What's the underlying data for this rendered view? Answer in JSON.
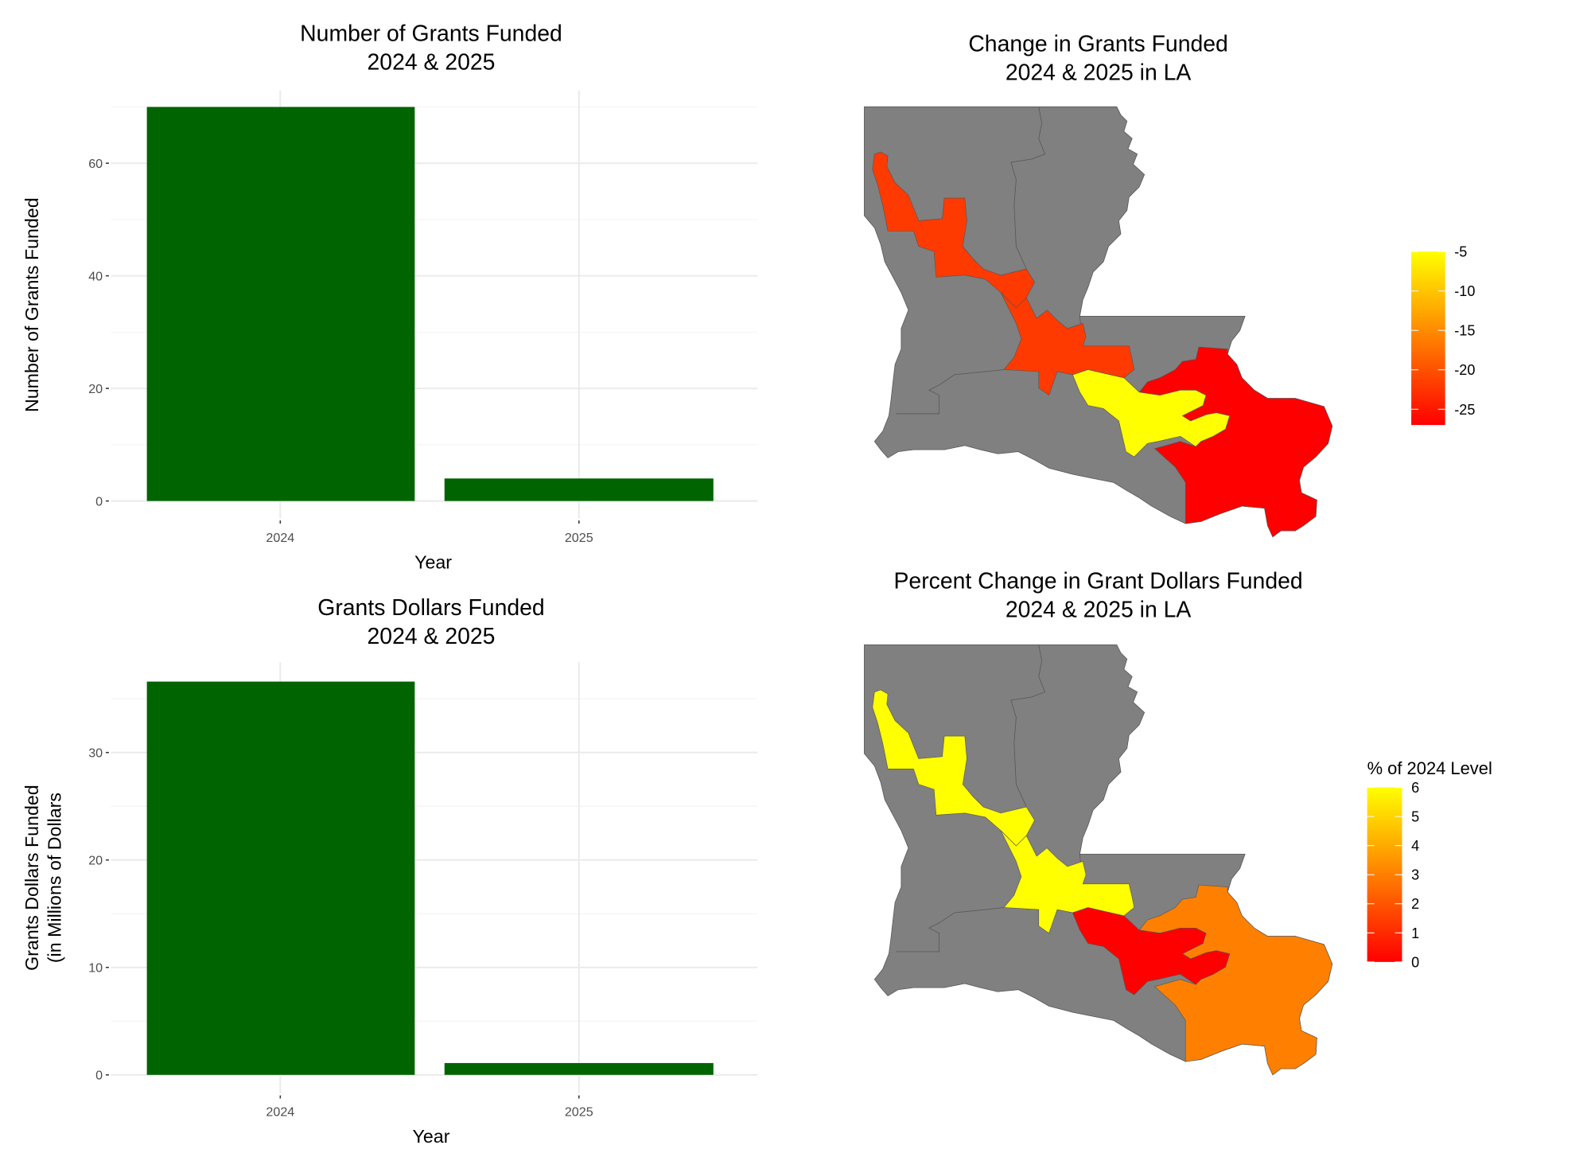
{
  "chart_data": [
    {
      "type": "bar",
      "title_line1": "Number of Grants Funded",
      "title_line2": "2024 & 2025",
      "xlabel": "Year",
      "ylabel": "Number of Grants Funded",
      "ylabel_line2": "",
      "categories": [
        "2024",
        "2025"
      ],
      "values": [
        70,
        4
      ],
      "yticks": [
        0,
        20,
        40,
        60
      ],
      "ylim": [
        0,
        73
      ],
      "bar_color": "#006400"
    },
    {
      "type": "bar",
      "title_line1": "Grants Dollars Funded",
      "title_line2": "2024 & 2025",
      "xlabel": "Year",
      "ylabel": "Grants Dollars Funded",
      "ylabel_line2": "(in Millions of Dollars",
      "categories": [
        "2024",
        "2025"
      ],
      "values": [
        36.6,
        1.1
      ],
      "yticks": [
        0,
        10,
        20,
        30
      ],
      "ylim": [
        0,
        38.5
      ],
      "bar_color": "#006400"
    },
    {
      "type": "heatmap",
      "subtype": "choropleth",
      "title_line1": "Change in Grants Funded",
      "title_line2": "2024 & 2025 in LA",
      "legend_title": "",
      "legend_ticks": [
        "-5",
        "-10",
        "-15",
        "-20",
        "-25"
      ],
      "legend_tick_values": [
        -5,
        -10,
        -15,
        -20,
        -25
      ],
      "limits": [
        -27,
        -5
      ],
      "low_color": "#FF0000",
      "high_color": "#FFFF00",
      "na_color": "#808080",
      "districts": {
        "1": -27,
        "2": -5,
        "3": null,
        "4": -22,
        "5": null,
        "6": -22
      }
    },
    {
      "type": "heatmap",
      "subtype": "choropleth",
      "title_line1": "Percent Change in Grant Dollars Funded",
      "title_line2": "2024 & 2025 in LA",
      "legend_title": "% of 2024 Level",
      "legend_ticks": [
        "6",
        "5",
        "4",
        "3",
        "2",
        "1",
        "0"
      ],
      "legend_tick_values": [
        6,
        5,
        4,
        3,
        2,
        1,
        0
      ],
      "limits": [
        0,
        6
      ],
      "low_color": "#FF0000",
      "high_color": "#FFFF00",
      "na_color": "#808080",
      "districts": {
        "1": 3,
        "2": 0,
        "3": null,
        "4": 6,
        "5": null,
        "6": 6
      }
    }
  ]
}
